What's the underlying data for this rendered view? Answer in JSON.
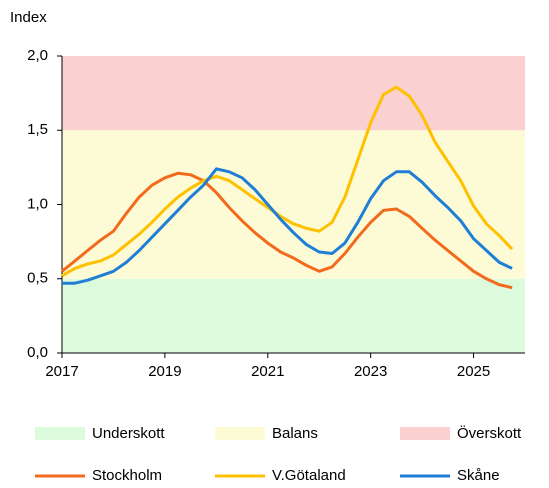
{
  "chart_data": {
    "type": "line",
    "y_label": "Index",
    "x": [
      2017,
      2017.25,
      2017.5,
      2017.75,
      2018,
      2018.25,
      2018.5,
      2018.75,
      2019,
      2019.25,
      2019.5,
      2019.75,
      2020,
      2020.25,
      2020.5,
      2020.75,
      2021,
      2021.25,
      2021.5,
      2021.75,
      2022,
      2022.25,
      2022.5,
      2022.75,
      2023,
      2023.25,
      2023.5,
      2023.75,
      2024,
      2024.25,
      2024.5,
      2024.75,
      2025,
      2025.25,
      2025.5,
      2025.75
    ],
    "xlim": [
      2017,
      2026
    ],
    "xticks": [
      2017,
      2019,
      2021,
      2023,
      2025
    ],
    "ylim": [
      0,
      2
    ],
    "yticks": [
      {
        "value": 0,
        "label": "0,0"
      },
      {
        "value": 0.5,
        "label": "0,5"
      },
      {
        "value": 1,
        "label": "1,0"
      },
      {
        "value": 1.5,
        "label": "1,5"
      },
      {
        "value": 2,
        "label": "2,0"
      }
    ],
    "bands": [
      {
        "name": "Underskott",
        "color": "#dcfadc",
        "from": 0,
        "to": 0.5
      },
      {
        "name": "Balans",
        "color": "#fdfbd5",
        "from": 0.5,
        "to": 1.5
      },
      {
        "name": "Överskott",
        "color": "#fbd0d0",
        "from": 1.5,
        "to": 2
      }
    ],
    "series": [
      {
        "name": "Stockholm",
        "color": "#f26b1d",
        "values": [
          0.55,
          0.62,
          0.69,
          0.76,
          0.82,
          0.94,
          1.05,
          1.13,
          1.18,
          1.21,
          1.2,
          1.16,
          1.08,
          0.98,
          0.89,
          0.81,
          0.74,
          0.68,
          0.64,
          0.59,
          0.55,
          0.58,
          0.67,
          0.78,
          0.88,
          0.96,
          0.97,
          0.92,
          0.84,
          0.76,
          0.69,
          0.62,
          0.55,
          0.5,
          0.46,
          0.44
        ]
      },
      {
        "name": "V.Götaland",
        "color": "#ffc000",
        "values": [
          0.52,
          0.57,
          0.6,
          0.62,
          0.66,
          0.73,
          0.8,
          0.88,
          0.97,
          1.05,
          1.11,
          1.16,
          1.19,
          1.16,
          1.1,
          1.04,
          0.98,
          0.92,
          0.87,
          0.84,
          0.82,
          0.88,
          1.05,
          1.3,
          1.55,
          1.74,
          1.79,
          1.73,
          1.6,
          1.42,
          1.29,
          1.16,
          0.99,
          0.87,
          0.79,
          0.7
        ]
      },
      {
        "name": "Skåne",
        "color": "#1f7fd6",
        "values": [
          0.47,
          0.47,
          0.49,
          0.52,
          0.55,
          0.61,
          0.69,
          0.78,
          0.87,
          0.96,
          1.05,
          1.13,
          1.24,
          1.22,
          1.18,
          1.1,
          1.0,
          0.9,
          0.81,
          0.73,
          0.68,
          0.67,
          0.74,
          0.88,
          1.04,
          1.16,
          1.22,
          1.22,
          1.15,
          1.06,
          0.98,
          0.89,
          0.77,
          0.69,
          0.61,
          0.57
        ]
      }
    ]
  }
}
